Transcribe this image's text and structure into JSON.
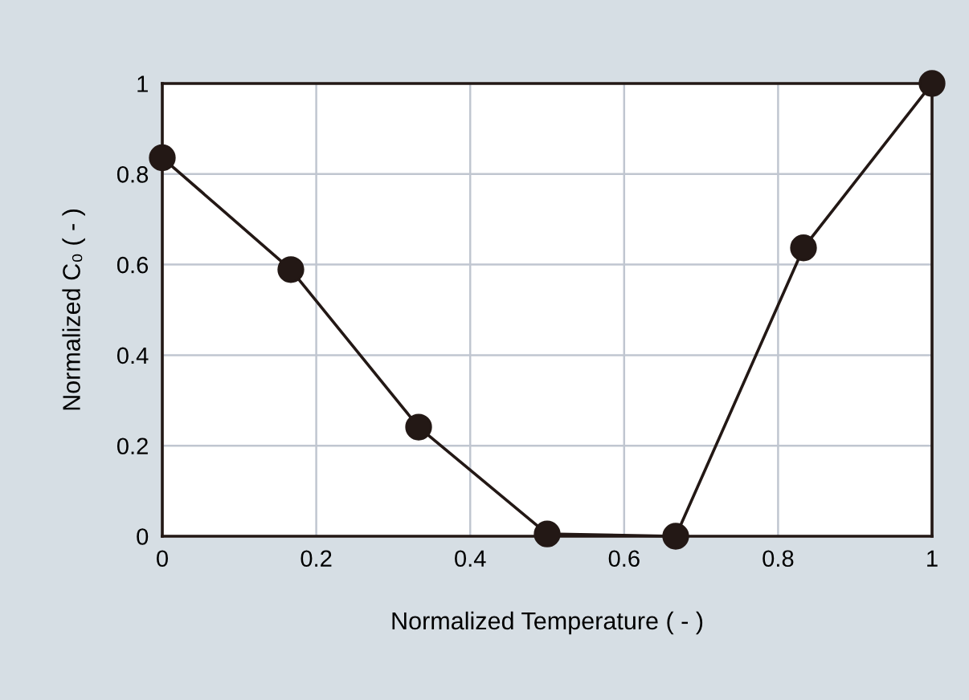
{
  "chart_data": {
    "type": "line",
    "xlabel": "Normalized Temperature ( - )",
    "ylabel": "Normalized C₀ ( - )",
    "x": [
      0,
      0.167,
      0.333,
      0.5,
      0.667,
      0.833,
      1
    ],
    "series": [
      {
        "color": "#231815",
        "values": [
          0.836,
          0.589,
          0.241,
          0.005,
          0.0,
          0.637,
          1.0
        ]
      }
    ],
    "xlim": [
      0,
      1
    ],
    "ylim": [
      0,
      1
    ],
    "xticks": [
      0,
      0.2,
      0.4,
      0.6,
      0.8,
      1
    ],
    "yticks": [
      0,
      0.2,
      0.4,
      0.6,
      0.8,
      1
    ],
    "grid": true,
    "marker": "circle",
    "line_style": "solid"
  }
}
